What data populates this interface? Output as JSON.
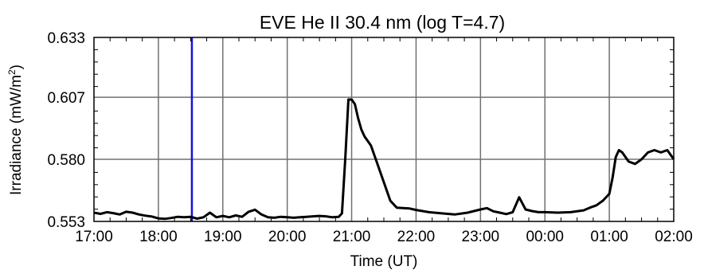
{
  "chart_data": {
    "type": "line",
    "title": "EVE He II 30.4 nm (log T=4.7)",
    "xlabel": "Time (UT)",
    "ylabel_main": "Irradiance (mW/m",
    "ylabel_sup": "2",
    "ylabel_close": ")",
    "x_ticks": [
      "17:00",
      "18:00",
      "19:00",
      "20:00",
      "21:00",
      "22:00",
      "23:00",
      "00:00",
      "01:00",
      "02:00"
    ],
    "y_ticks": [
      "0.553",
      "0.580",
      "0.607",
      "0.633"
    ],
    "xlim": [
      0,
      9
    ],
    "ylim": [
      0.553,
      0.633
    ],
    "grid": true,
    "marker_line": {
      "x": 1.52,
      "color": "#1010e0"
    },
    "series": [
      {
        "color": "#000000",
        "x": [
          0,
          0.1,
          0.2,
          0.3,
          0.4,
          0.5,
          0.6,
          0.7,
          0.8,
          0.9,
          1.0,
          1.1,
          1.2,
          1.3,
          1.4,
          1.5,
          1.6,
          1.7,
          1.8,
          1.9,
          2.0,
          2.1,
          2.2,
          2.3,
          2.4,
          2.5,
          2.6,
          2.7,
          2.8,
          2.9,
          3.0,
          3.1,
          3.2,
          3.3,
          3.4,
          3.5,
          3.6,
          3.7,
          3.8,
          3.85,
          3.9,
          3.95,
          4.0,
          4.05,
          4.1,
          4.15,
          4.2,
          4.3,
          4.4,
          4.5,
          4.6,
          4.7,
          4.8,
          4.9,
          5.0,
          5.2,
          5.4,
          5.6,
          5.8,
          6.0,
          6.1,
          6.2,
          6.3,
          6.4,
          6.5,
          6.6,
          6.7,
          6.8,
          6.9,
          7.0,
          7.2,
          7.4,
          7.6,
          7.7,
          7.8,
          7.9,
          8.0,
          8.05,
          8.1,
          8.15,
          8.2,
          8.3,
          8.4,
          8.5,
          8.6,
          8.7,
          8.8,
          8.9,
          8.95,
          9.0
        ],
        "values": [
          0.5568,
          0.5563,
          0.557,
          0.5566,
          0.556,
          0.5572,
          0.5568,
          0.556,
          0.5555,
          0.5551,
          0.5543,
          0.5541,
          0.5545,
          0.555,
          0.5548,
          0.555,
          0.5542,
          0.5548,
          0.5568,
          0.5548,
          0.5554,
          0.5548,
          0.5556,
          0.555,
          0.5572,
          0.5581,
          0.556,
          0.5548,
          0.5546,
          0.555,
          0.5548,
          0.5546,
          0.5548,
          0.555,
          0.5552,
          0.5554,
          0.5552,
          0.5548,
          0.555,
          0.5565,
          0.58,
          0.606,
          0.606,
          0.604,
          0.598,
          0.593,
          0.59,
          0.586,
          0.578,
          0.57,
          0.562,
          0.559,
          0.5588,
          0.5586,
          0.558,
          0.557,
          0.5565,
          0.556,
          0.5568,
          0.5582,
          0.5588,
          0.5574,
          0.5568,
          0.5562,
          0.557,
          0.5635,
          0.5582,
          0.5575,
          0.557,
          0.557,
          0.5568,
          0.557,
          0.5578,
          0.559,
          0.56,
          0.562,
          0.565,
          0.572,
          0.581,
          0.584,
          0.583,
          0.579,
          0.578,
          0.58,
          0.583,
          0.584,
          0.583,
          0.584,
          0.582,
          0.58
        ]
      }
    ]
  }
}
